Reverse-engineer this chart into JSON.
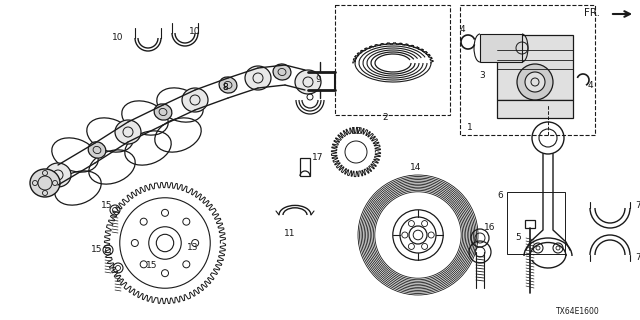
{
  "background_color": "#ffffff",
  "line_color": "#1a1a1a",
  "text_color": "#1a1a1a",
  "diagram_code": "TX64E1600",
  "fr_label": "FR.",
  "font_size": 6.5,
  "label_font_size": 6.5
}
